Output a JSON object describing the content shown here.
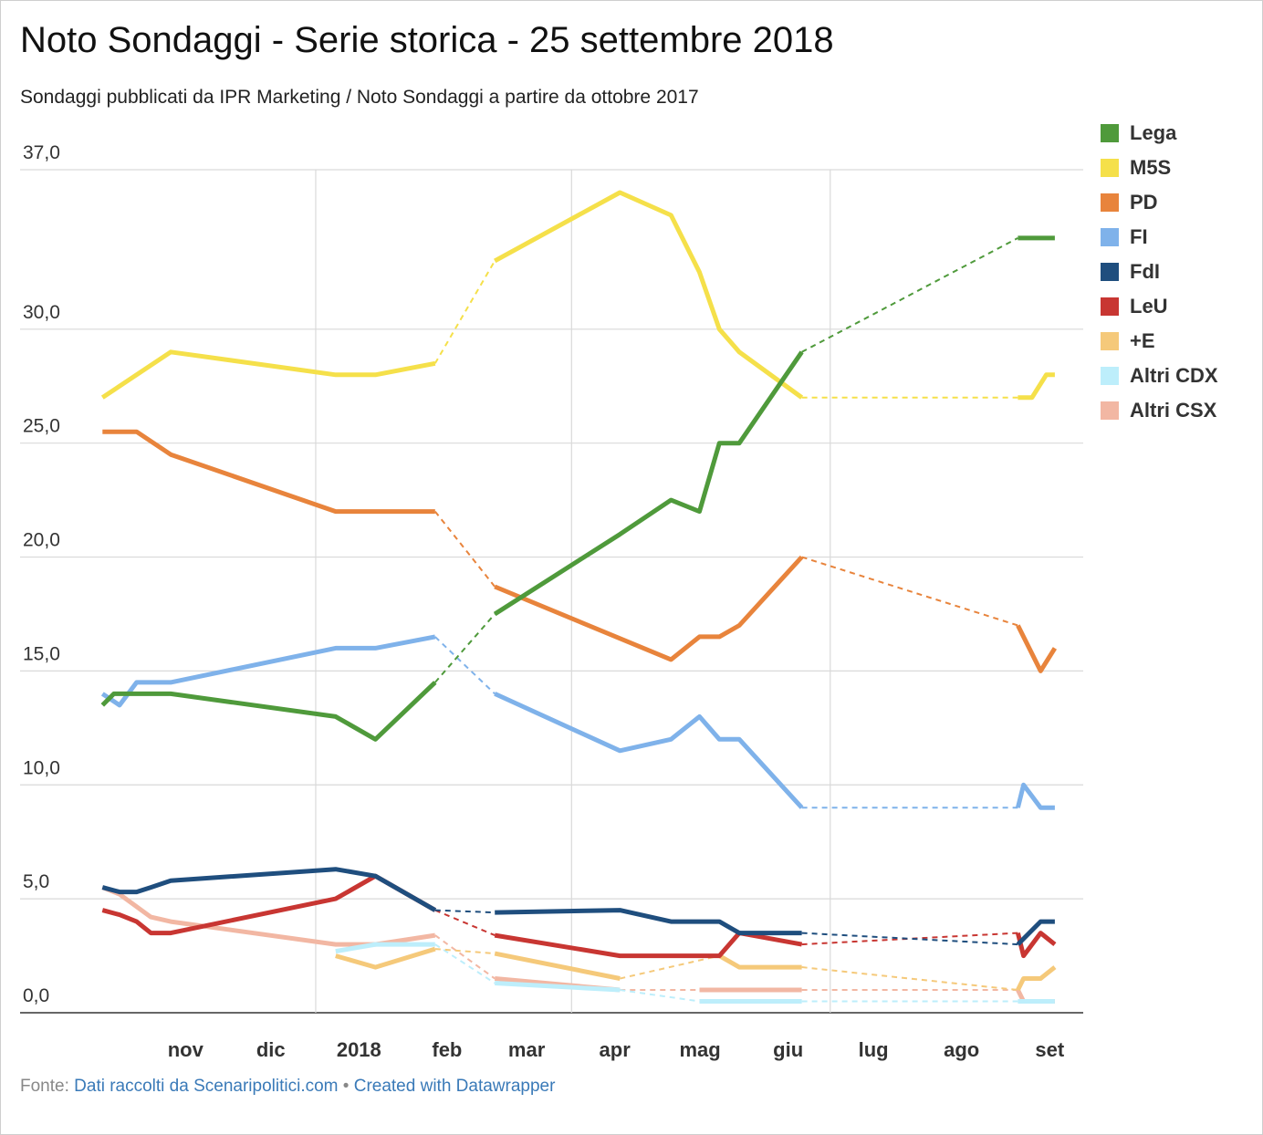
{
  "header": {
    "title": "Noto Sondaggi - Serie storica - 25 settembre 2018",
    "subtitle": "Sondaggi pubblicati da IPR Marketing / Noto Sondaggi a partire da ottobre 2017"
  },
  "footer": {
    "prefix": "Fonte:",
    "source_link": "Dati raccolti da Scenaripolitici.com",
    "separator": "•",
    "credit_link": "Created with Datawrapper"
  },
  "chart_data": {
    "type": "line",
    "xlim": [
      "2017-10-15",
      "2018-09-28"
    ],
    "ylim": [
      0,
      37
    ],
    "yticks": [
      "0,0",
      "5,0",
      "10,0",
      "15,0",
      "20,0",
      "25,0",
      "30,0",
      "37,0"
    ],
    "ytick_values": [
      0,
      5,
      10,
      15,
      20,
      25,
      30,
      37
    ],
    "xticks": [
      {
        "label": "nov",
        "date": "2017-11-01"
      },
      {
        "label": "dic",
        "date": "2017-12-01"
      },
      {
        "label": "2018",
        "date": "2018-01-01"
      },
      {
        "label": "feb",
        "date": "2018-02-01"
      },
      {
        "label": "mar",
        "date": "2018-03-01"
      },
      {
        "label": "apr",
        "date": "2018-04-01"
      },
      {
        "label": "mag",
        "date": "2018-05-01"
      },
      {
        "label": "giu",
        "date": "2018-06-01"
      },
      {
        "label": "lug",
        "date": "2018-07-01"
      },
      {
        "label": "ago",
        "date": "2018-08-01"
      },
      {
        "label": "set",
        "date": "2018-09-01"
      }
    ],
    "gridlines_x": [
      "2018-01-01",
      "2018-04-01",
      "2018-07-01"
    ],
    "grid": true,
    "legend": "right",
    "series": [
      {
        "name": "Lega",
        "color": "#4f9a3b",
        "points": [
          [
            "2017-10-18",
            13.5
          ],
          [
            "2017-10-22",
            14
          ],
          [
            "2017-11-04",
            14
          ],
          [
            "2017-11-11",
            14
          ],
          [
            "2018-01-08",
            13
          ],
          [
            "2018-01-22",
            12
          ],
          [
            "2018-02-12",
            14.5
          ],
          null,
          [
            "2018-03-05",
            17.5
          ],
          [
            "2018-04-18",
            21
          ],
          [
            "2018-05-06",
            22.5
          ],
          [
            "2018-05-16",
            22
          ],
          [
            "2018-05-23",
            25
          ],
          [
            "2018-05-30",
            25
          ],
          [
            "2018-06-21",
            29
          ],
          null,
          [
            "2018-09-05",
            34
          ],
          [
            "2018-09-18",
            34
          ]
        ]
      },
      {
        "name": "M5S",
        "color": "#f5e04a",
        "points": [
          [
            "2017-10-18",
            27
          ],
          [
            "2017-11-11",
            29
          ],
          [
            "2018-01-08",
            28
          ],
          [
            "2018-01-22",
            28
          ],
          [
            "2018-02-12",
            28.5
          ],
          null,
          [
            "2018-03-05",
            33
          ],
          [
            "2018-04-18",
            36
          ],
          [
            "2018-05-06",
            35
          ],
          [
            "2018-05-16",
            32.5
          ],
          [
            "2018-05-23",
            30
          ],
          [
            "2018-05-30",
            29
          ],
          [
            "2018-06-21",
            27
          ],
          null,
          [
            "2018-09-05",
            27
          ],
          [
            "2018-09-10",
            27
          ],
          [
            "2018-09-15",
            28
          ],
          [
            "2018-09-18",
            28
          ]
        ]
      },
      {
        "name": "PD",
        "color": "#e8843c",
        "points": [
          [
            "2017-10-18",
            25.5
          ],
          [
            "2017-10-30",
            25.5
          ],
          [
            "2017-11-11",
            24.5
          ],
          [
            "2018-01-08",
            22
          ],
          [
            "2018-01-22",
            22
          ],
          [
            "2018-02-12",
            22
          ],
          null,
          [
            "2018-03-05",
            18.7
          ],
          [
            "2018-05-06",
            15.5
          ],
          [
            "2018-05-16",
            16.5
          ],
          [
            "2018-05-23",
            16.5
          ],
          [
            "2018-05-30",
            17
          ],
          [
            "2018-06-21",
            20
          ],
          null,
          [
            "2018-09-05",
            17
          ],
          [
            "2018-09-13",
            15
          ],
          [
            "2018-09-18",
            16
          ]
        ]
      },
      {
        "name": "FI",
        "color": "#7fb2ea",
        "points": [
          [
            "2017-10-18",
            14
          ],
          [
            "2017-10-24",
            13.5
          ],
          [
            "2017-10-30",
            14.5
          ],
          [
            "2017-11-11",
            14.5
          ],
          [
            "2018-01-08",
            16
          ],
          [
            "2018-01-22",
            16
          ],
          [
            "2018-02-12",
            16.5
          ],
          null,
          [
            "2018-03-05",
            14
          ],
          [
            "2018-04-18",
            11.5
          ],
          [
            "2018-05-06",
            12
          ],
          [
            "2018-05-16",
            13
          ],
          [
            "2018-05-23",
            12
          ],
          [
            "2018-05-30",
            12
          ],
          [
            "2018-06-21",
            9
          ],
          null,
          [
            "2018-09-05",
            9
          ],
          [
            "2018-09-07",
            10
          ],
          [
            "2018-09-13",
            9
          ],
          [
            "2018-09-18",
            9
          ]
        ]
      },
      {
        "name": "FdI",
        "color": "#1f4e7e",
        "points": [
          [
            "2017-10-18",
            5.5
          ],
          [
            "2017-10-24",
            5.3
          ],
          [
            "2017-10-30",
            5.3
          ],
          [
            "2017-11-04",
            5.5
          ],
          [
            "2017-11-11",
            5.8
          ],
          [
            "2018-01-08",
            6.3
          ],
          [
            "2018-01-22",
            6
          ],
          [
            "2018-02-12",
            4.5
          ],
          null,
          [
            "2018-03-05",
            4.4
          ],
          [
            "2018-04-18",
            4.5
          ],
          [
            "2018-05-06",
            4
          ],
          [
            "2018-05-23",
            4
          ],
          [
            "2018-05-30",
            3.5
          ],
          [
            "2018-06-21",
            3.5
          ],
          null,
          [
            "2018-09-05",
            3
          ],
          [
            "2018-09-13",
            4
          ],
          [
            "2018-09-18",
            4
          ]
        ]
      },
      {
        "name": "LeU",
        "color": "#c83632",
        "points": [
          [
            "2017-10-18",
            4.5
          ],
          [
            "2017-10-24",
            4.3
          ],
          [
            "2017-10-30",
            4
          ],
          [
            "2017-11-04",
            3.5
          ],
          [
            "2017-11-11",
            3.5
          ],
          [
            "2018-01-08",
            5
          ],
          [
            "2018-01-22",
            6
          ],
          [
            "2018-02-12",
            4.5
          ],
          null,
          [
            "2018-03-05",
            3.4
          ],
          [
            "2018-04-18",
            2.5
          ],
          [
            "2018-05-23",
            2.5
          ],
          [
            "2018-05-30",
            3.5
          ],
          [
            "2018-06-21",
            3
          ],
          null,
          [
            "2018-09-05",
            3.5
          ],
          [
            "2018-09-07",
            2.5
          ],
          [
            "2018-09-13",
            3.5
          ],
          [
            "2018-09-18",
            3
          ]
        ]
      },
      {
        "name": "+E",
        "color": "#f5c97a",
        "points": [
          [
            "2018-01-08",
            2.5
          ],
          [
            "2018-01-22",
            2
          ],
          [
            "2018-02-12",
            2.8
          ],
          null,
          [
            "2018-03-05",
            2.6
          ],
          [
            "2018-04-18",
            1.5
          ],
          null,
          [
            "2018-05-23",
            2.5
          ],
          [
            "2018-05-30",
            2
          ],
          [
            "2018-06-21",
            2
          ],
          null,
          [
            "2018-09-05",
            1
          ],
          [
            "2018-09-07",
            1.5
          ],
          [
            "2018-09-13",
            1.5
          ],
          [
            "2018-09-18",
            2
          ]
        ]
      },
      {
        "name": "Altri CDX",
        "color": "#bdeefb",
        "points": [
          [
            "2018-01-08",
            2.7
          ],
          [
            "2018-01-22",
            3
          ],
          [
            "2018-02-12",
            3
          ],
          null,
          [
            "2018-03-05",
            1.3
          ],
          [
            "2018-04-18",
            1
          ],
          null,
          [
            "2018-05-16",
            0.5
          ],
          [
            "2018-06-21",
            0.5
          ],
          null,
          [
            "2018-09-05",
            0.5
          ],
          [
            "2018-09-18",
            0.5
          ]
        ]
      },
      {
        "name": "Altri CSX",
        "color": "#f2b7a3",
        "points": [
          [
            "2017-10-18",
            5.5
          ],
          [
            "2017-10-24",
            5.2
          ],
          [
            "2017-11-04",
            4.2
          ],
          [
            "2017-11-11",
            4
          ],
          [
            "2018-01-08",
            3
          ],
          [
            "2018-01-22",
            3
          ],
          [
            "2018-02-12",
            3.4
          ],
          null,
          [
            "2018-03-05",
            1.5
          ],
          [
            "2018-04-18",
            1
          ],
          null,
          [
            "2018-05-16",
            1
          ],
          [
            "2018-06-21",
            1
          ],
          null,
          [
            "2018-09-05",
            1
          ],
          [
            "2018-09-07",
            0.5
          ],
          [
            "2018-09-18",
            0.5
          ]
        ]
      }
    ]
  }
}
